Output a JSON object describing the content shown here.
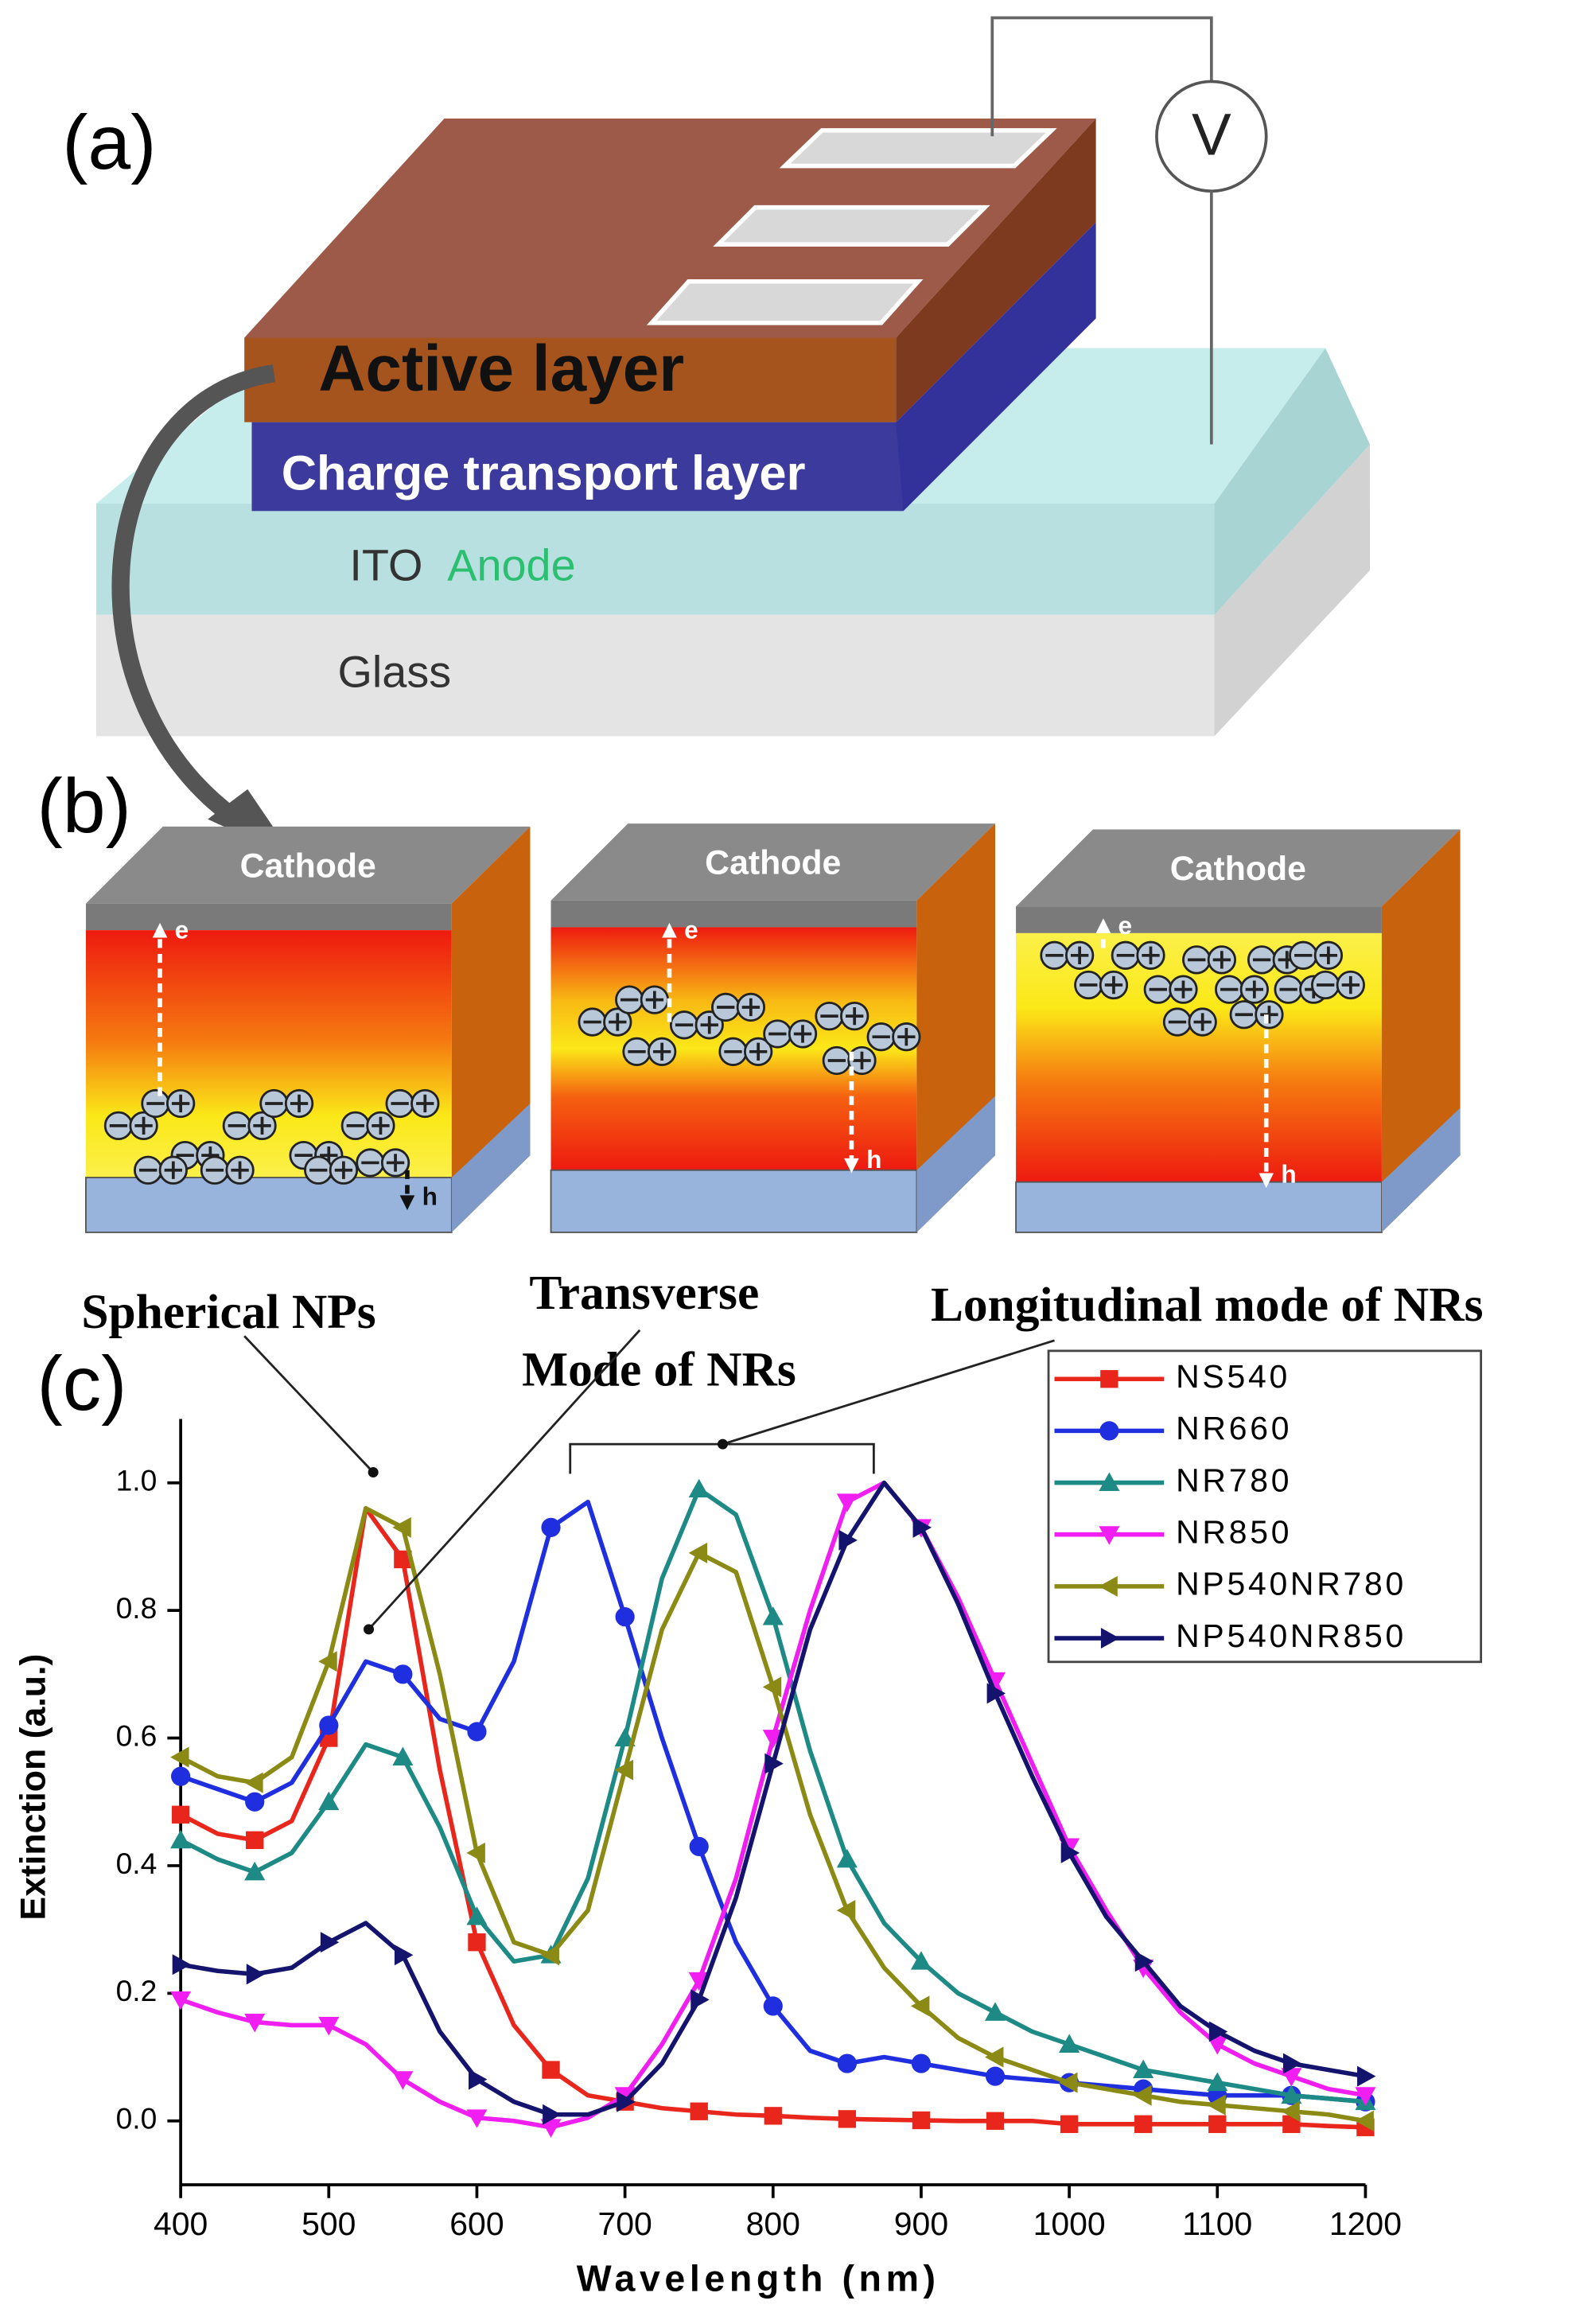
{
  "panel_a": {
    "label": "(a)",
    "active_layer": "Active layer",
    "charge_transport_layer": "Charge transport layer",
    "ito": "ITO",
    "anode": "Anode",
    "glass": "Glass",
    "voltmeter": "V"
  },
  "panel_b": {
    "label": "(b)",
    "devices": [
      {
        "cathode": "Cathode",
        "electron": "e",
        "hole": "h"
      },
      {
        "cathode": "Cathode",
        "electron": "e",
        "hole": "h"
      },
      {
        "cathode": "Cathode",
        "electron": "e",
        "hole": "h"
      }
    ]
  },
  "panel_c": {
    "label": "(c)"
  },
  "chart_data": {
    "type": "line",
    "xlabel": "Wavelength (nm)",
    "ylabel": "Extinction (a.u.)",
    "annotations": [
      "Spherical NPs",
      "Transverse",
      "Mode of NRs",
      "Longitudinal mode of NRs"
    ],
    "x": [
      400,
      425,
      450,
      475,
      500,
      525,
      550,
      575,
      600,
      625,
      650,
      675,
      700,
      725,
      750,
      775,
      800,
      825,
      850,
      875,
      900,
      925,
      950,
      975,
      1000,
      1025,
      1050,
      1075,
      1100,
      1125,
      1150,
      1175,
      1200
    ],
    "series": [
      {
        "name": "NS540",
        "color": "#e8261c",
        "marker": "square",
        "values": [
          0.48,
          0.45,
          0.44,
          0.47,
          0.6,
          0.96,
          0.88,
          0.55,
          0.28,
          0.15,
          0.08,
          0.04,
          0.03,
          0.02,
          0.015,
          0.01,
          0.008,
          0.005,
          0.003,
          0.002,
          0.001,
          0,
          0,
          0,
          -0.005,
          -0.005,
          -0.005,
          -0.005,
          -0.005,
          -0.005,
          -0.005,
          -0.008,
          -0.01
        ]
      },
      {
        "name": "NR660",
        "color": "#1f2fe0",
        "marker": "circle",
        "values": [
          0.54,
          0.52,
          0.5,
          0.53,
          0.62,
          0.72,
          0.7,
          0.63,
          0.61,
          0.72,
          0.93,
          0.97,
          0.79,
          0.6,
          0.43,
          0.28,
          0.18,
          0.11,
          0.09,
          0.1,
          0.09,
          0.08,
          0.07,
          0.065,
          0.06,
          0.055,
          0.05,
          0.045,
          0.04,
          0.04,
          0.04,
          0.035,
          0.03
        ]
      },
      {
        "name": "NR780",
        "color": "#1e8a86",
        "marker": "triangle-up",
        "values": [
          0.44,
          0.41,
          0.39,
          0.42,
          0.5,
          0.59,
          0.57,
          0.46,
          0.32,
          0.25,
          0.26,
          0.38,
          0.6,
          0.85,
          0.99,
          0.95,
          0.79,
          0.58,
          0.41,
          0.31,
          0.25,
          0.2,
          0.17,
          0.14,
          0.12,
          0.1,
          0.08,
          0.07,
          0.06,
          0.05,
          0.04,
          0.035,
          0.03
        ]
      },
      {
        "name": "NR850",
        "color": "#f01ef0",
        "marker": "triangle-down",
        "values": [
          0.19,
          0.17,
          0.155,
          0.15,
          0.15,
          0.12,
          0.065,
          0.03,
          0.005,
          0,
          -0.01,
          0.005,
          0.04,
          0.12,
          0.22,
          0.38,
          0.6,
          0.8,
          0.97,
          1.0,
          0.93,
          0.82,
          0.69,
          0.56,
          0.43,
          0.33,
          0.24,
          0.17,
          0.12,
          0.09,
          0.07,
          0.05,
          0.04
        ]
      },
      {
        "name": "NP540NR780",
        "color": "#8a8a14",
        "marker": "triangle-left",
        "values": [
          0.57,
          0.54,
          0.53,
          0.57,
          0.72,
          0.96,
          0.93,
          0.7,
          0.42,
          0.28,
          0.26,
          0.33,
          0.55,
          0.77,
          0.89,
          0.86,
          0.68,
          0.48,
          0.33,
          0.24,
          0.18,
          0.13,
          0.1,
          0.08,
          0.06,
          0.05,
          0.04,
          0.03,
          0.025,
          0.02,
          0.015,
          0.01,
          0
        ]
      },
      {
        "name": "NP540NR850",
        "color": "#14146e",
        "marker": "triangle-right",
        "values": [
          0.245,
          0.235,
          0.23,
          0.24,
          0.28,
          0.31,
          0.26,
          0.14,
          0.065,
          0.03,
          0.01,
          0.01,
          0.03,
          0.09,
          0.19,
          0.35,
          0.56,
          0.77,
          0.91,
          1.0,
          0.93,
          0.81,
          0.67,
          0.54,
          0.42,
          0.32,
          0.25,
          0.18,
          0.14,
          0.11,
          0.09,
          0.08,
          0.07
        ]
      }
    ],
    "xlim": [
      400,
      1200
    ],
    "ylim": [
      -0.1,
      1.1
    ],
    "xticks": [
      400,
      500,
      600,
      700,
      800,
      900,
      1000,
      1100,
      1200
    ],
    "yticks": [
      {
        "value": 0,
        "label": "0.0"
      },
      {
        "value": 0.2,
        "label": "0.2"
      },
      {
        "value": 0.4,
        "label": "0.4"
      },
      {
        "value": 0.6,
        "label": "0.6"
      },
      {
        "value": 0.8,
        "label": "0.8"
      },
      {
        "value": 1,
        "label": "1.0"
      }
    ],
    "legend": "upper right",
    "grid": false
  }
}
